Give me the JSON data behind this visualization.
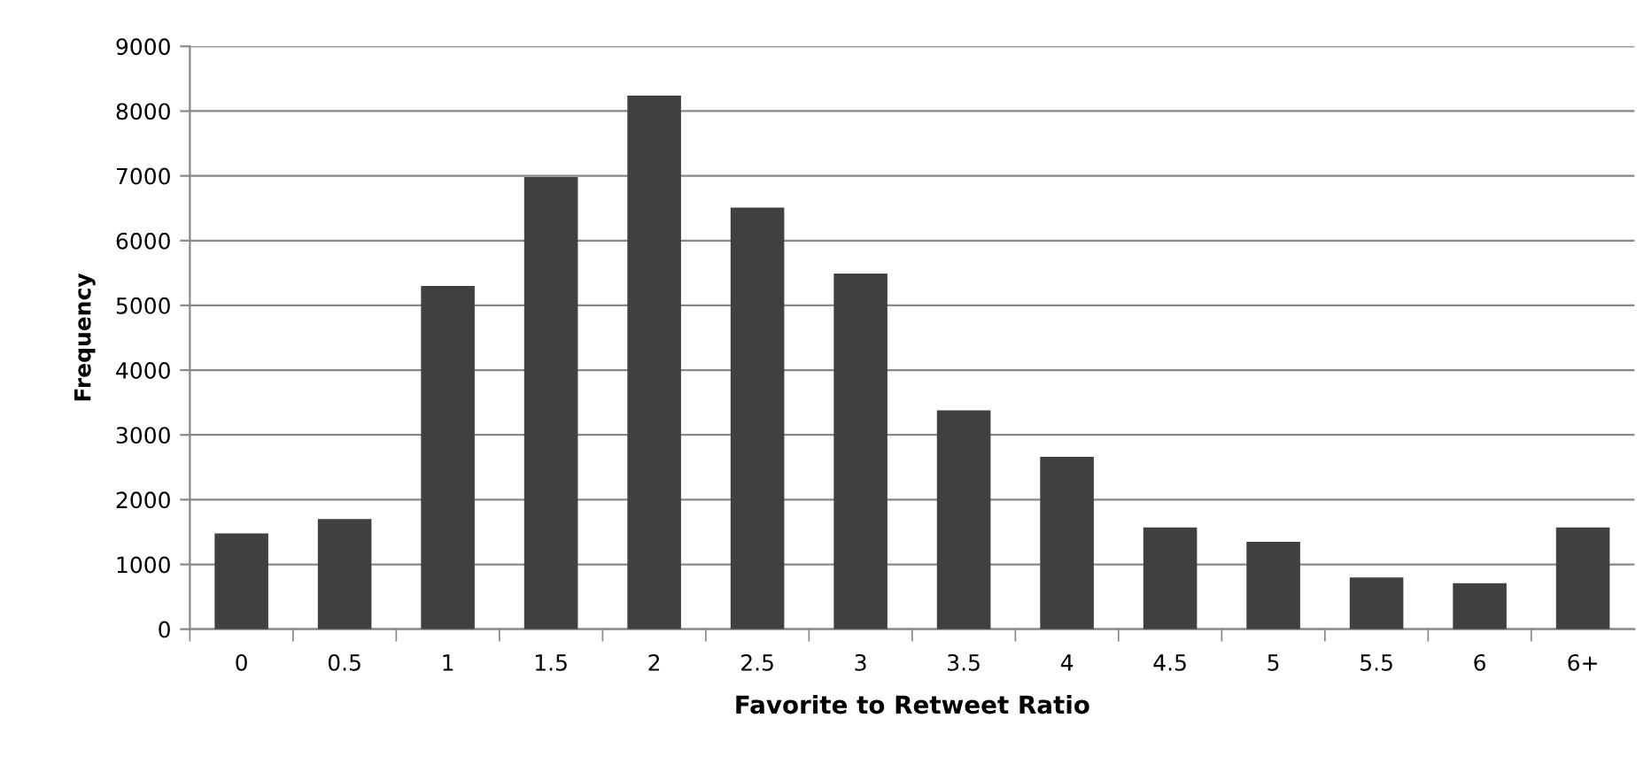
{
  "chart_data": {
    "type": "bar",
    "xlabel": "Favorite to Retweet Ratio",
    "ylabel": "Frequency",
    "categories": [
      "0",
      "0.5",
      "1",
      "1.5",
      "2",
      "2.5",
      "3",
      "3.5",
      "4",
      "4.5",
      "5",
      "5.5",
      "6",
      "6+"
    ],
    "values": [
      1480,
      1700,
      5300,
      6980,
      8240,
      6510,
      5490,
      3380,
      2660,
      1570,
      1350,
      800,
      710,
      1570
    ],
    "color": "#404040",
    "ylim": [
      0,
      9000
    ],
    "yticks": [
      0,
      1000,
      2000,
      3000,
      4000,
      5000,
      6000,
      7000,
      8000,
      9000
    ],
    "grid": "y"
  }
}
